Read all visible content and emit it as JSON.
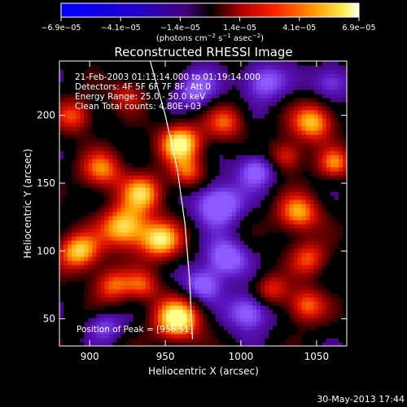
{
  "colorbar": {
    "ticks": [
      "−6.9e−05",
      "−4.1e−05",
      "−1.4e−05",
      "1.4e−05",
      "4.1e−05",
      "6.9e−05"
    ],
    "units_main": "(photons cm",
    "units_sup1": "−2",
    "units_mid": " s",
    "units_sup2": "−1",
    "units_mid2": " asec",
    "units_sup3": "−2",
    "units_end": ")"
  },
  "chart_data": {
    "type": "heatmap",
    "title": "Reconstructed RHESSI Image",
    "xlabel": "Heliocentric X (arcsec)",
    "ylabel": "Heliocentric Y (arcsec)",
    "xlim": [
      880,
      1070
    ],
    "ylim": [
      30,
      240
    ],
    "x_ticks": [
      900,
      950,
      1000,
      1050
    ],
    "y_ticks": [
      50,
      100,
      150,
      200
    ],
    "value_range": [
      -6.9e-05,
      6.9e-05
    ],
    "grid": false,
    "annotations": [
      "21-Feb-2003 01:13:14.000 to 01:19:14.000",
      "Detectors: 4F 5F 6F 7F 8F, Att 0",
      "Energy Range: 25.0 - 50.0 keV",
      "Clean     Total counts: 4.80E+03"
    ],
    "peak_label": "Position of Peak = [956,51]",
    "blobs": [
      {
        "x": 958,
        "y": 50,
        "i": 1.0,
        "r": 11
      },
      {
        "x": 893,
        "y": 100,
        "i": 0.85,
        "r": 10
      },
      {
        "x": 923,
        "y": 118,
        "i": 0.9,
        "r": 11
      },
      {
        "x": 947,
        "y": 108,
        "i": 0.85,
        "r": 10
      },
      {
        "x": 935,
        "y": 143,
        "i": 0.75,
        "r": 10
      },
      {
        "x": 908,
        "y": 160,
        "i": 0.65,
        "r": 10
      },
      {
        "x": 960,
        "y": 180,
        "i": 0.95,
        "r": 10
      },
      {
        "x": 965,
        "y": 158,
        "i": 0.55,
        "r": 8
      },
      {
        "x": 990,
        "y": 195,
        "i": 0.55,
        "r": 9
      },
      {
        "x": 1048,
        "y": 195,
        "i": 0.8,
        "r": 10
      },
      {
        "x": 1030,
        "y": 170,
        "i": 0.55,
        "r": 8
      },
      {
        "x": 1062,
        "y": 165,
        "i": 0.6,
        "r": 8
      },
      {
        "x": 1038,
        "y": 128,
        "i": 0.75,
        "r": 10
      },
      {
        "x": 1045,
        "y": 95,
        "i": 0.55,
        "r": 9
      },
      {
        "x": 1020,
        "y": 72,
        "i": 0.5,
        "r": 8
      },
      {
        "x": 1043,
        "y": 60,
        "i": 0.65,
        "r": 9
      },
      {
        "x": 915,
        "y": 75,
        "i": 0.6,
        "r": 9
      },
      {
        "x": 935,
        "y": 75,
        "i": 0.5,
        "r": 8
      },
      {
        "x": 890,
        "y": 200,
        "i": 0.55,
        "r": 9
      },
      {
        "x": 925,
        "y": 215,
        "i": 0.45,
        "r": 8
      },
      {
        "x": 1005,
        "y": 55,
        "i": -0.6,
        "r": 10
      },
      {
        "x": 985,
        "y": 135,
        "i": -0.7,
        "r": 11
      },
      {
        "x": 990,
        "y": 95,
        "i": -0.6,
        "r": 10
      },
      {
        "x": 1010,
        "y": 160,
        "i": -0.55,
        "r": 9
      },
      {
        "x": 970,
        "y": 220,
        "i": -0.5,
        "r": 10
      },
      {
        "x": 1015,
        "y": 225,
        "i": -0.55,
        "r": 10
      },
      {
        "x": 975,
        "y": 75,
        "i": -0.55,
        "r": 9
      },
      {
        "x": 910,
        "y": 45,
        "i": -0.4,
        "r": 8
      },
      {
        "x": 1060,
        "y": 225,
        "i": -0.45,
        "r": 9
      }
    ],
    "limb_curve": [
      [
        940,
        240
      ],
      [
        950,
        200
      ],
      [
        958,
        160
      ],
      [
        963,
        120
      ],
      [
        966,
        80
      ],
      [
        968,
        35
      ]
    ],
    "footer": "30-May-2013 17:44"
  }
}
